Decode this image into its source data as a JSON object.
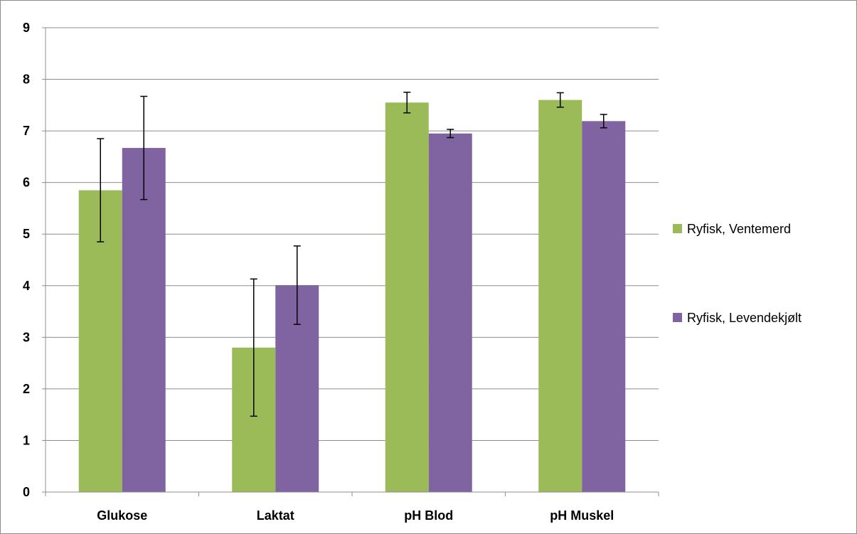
{
  "chart_data": {
    "type": "bar",
    "categories": [
      "Glukose",
      "Laktat",
      "pH Blod",
      "pH Muskel"
    ],
    "series": [
      {
        "name": "Ryfisk, Ventemerd",
        "color": "#9bbb59",
        "values": [
          5.85,
          2.8,
          7.55,
          7.6
        ],
        "error": [
          1.0,
          1.33,
          0.2,
          0.14
        ]
      },
      {
        "name": "Ryfisk, Levendekjølt",
        "color": "#8064a2",
        "values": [
          6.67,
          4.01,
          6.95,
          7.19
        ],
        "error": [
          1.0,
          0.76,
          0.08,
          0.13
        ]
      }
    ],
    "ylim": [
      0,
      9
    ],
    "yticks": [
      "0",
      "1",
      "2",
      "3",
      "4",
      "5",
      "6",
      "7",
      "8",
      "9"
    ],
    "grid": true,
    "legend_position": "right",
    "title": "",
    "xlabel": "",
    "ylabel": ""
  }
}
